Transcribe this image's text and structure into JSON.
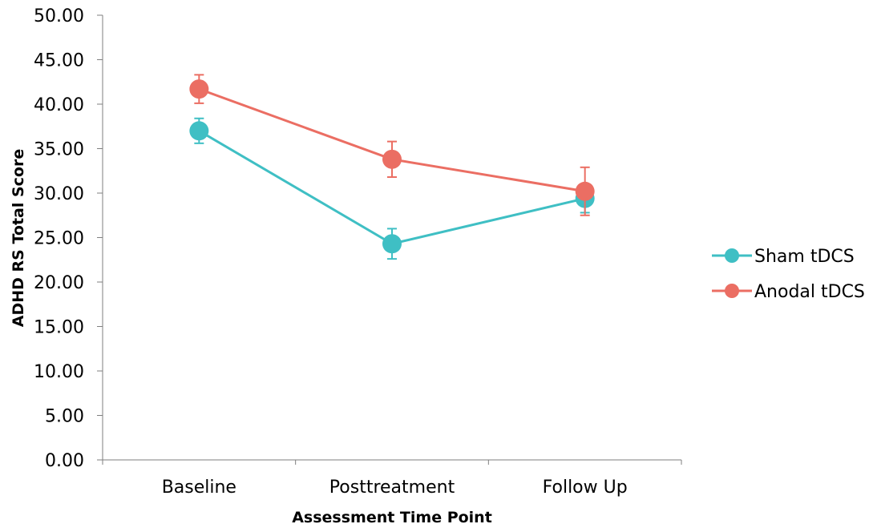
{
  "chart_data": {
    "type": "line",
    "title": "",
    "xlabel": "Assessment Time Point",
    "ylabel": "ADHD RS Total Score",
    "ylim": [
      0,
      50
    ],
    "yticks": [
      "0.00",
      "5.00",
      "10.00",
      "15.00",
      "20.00",
      "25.00",
      "30.00",
      "35.00",
      "40.00",
      "45.00",
      "50.00"
    ],
    "categories": [
      "Baseline",
      "Posttreatment",
      "Follow Up"
    ],
    "grid": false,
    "legend_position": "right",
    "series": [
      {
        "name": "Sham tDCS",
        "color": "#3fbfc4",
        "values": [
          37.0,
          24.3,
          29.4
        ],
        "error": [
          1.4,
          1.7,
          1.6
        ]
      },
      {
        "name": "Anodal tDCS",
        "color": "#eb6e63",
        "values": [
          41.7,
          33.8,
          30.2
        ],
        "error": [
          1.6,
          2.0,
          2.7
        ]
      }
    ]
  }
}
